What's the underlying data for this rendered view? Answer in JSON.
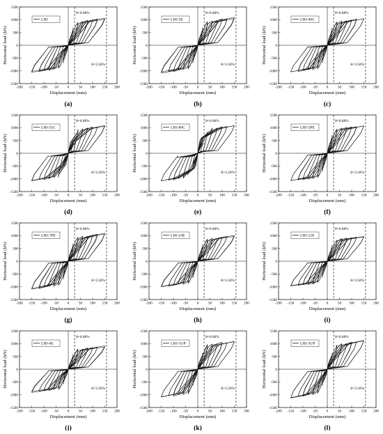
{
  "x_axis": {
    "label": "Displacement (mm)",
    "min": -200,
    "max": 200,
    "ticks": [
      "-200",
      "-150",
      "-100",
      "-50",
      "0",
      "50",
      "100",
      "150",
      "200"
    ]
  },
  "y_axis": {
    "label": "Horizontal load (kN)",
    "min": -1500,
    "max": 1500,
    "ticks": [
      "-1500",
      "-1000",
      "-500",
      "0",
      "500",
      "1000",
      "1500"
    ]
  },
  "annotations": {
    "drift_yield": "θ=0.68%",
    "drift_ultimate": "θ=3.50%"
  },
  "chart_data": [
    {
      "type": "line",
      "panel": "(a)",
      "legend": "LHJ",
      "peak_load": 1050,
      "yield_disp": 26,
      "max_disp": 150,
      "loop_disps": [
        20,
        40,
        60,
        80,
        100,
        120,
        150
      ],
      "pinch": 0.28,
      "xlim": [
        -200,
        200
      ],
      "ylim": [
        -1500,
        1500
      ],
      "vlines": [
        26,
        157
      ],
      "grid": false
    },
    {
      "type": "line",
      "panel": "(b)",
      "legend": "LHJ-5E",
      "peak_load": 1060,
      "yield_disp": 26,
      "max_disp": 150,
      "loop_disps": [
        20,
        40,
        60,
        80,
        100,
        120,
        150
      ],
      "pinch": 0.3,
      "xlim": [
        -200,
        200
      ],
      "ylim": [
        -1500,
        1500
      ],
      "vlines": [
        26,
        157
      ],
      "grid": false
    },
    {
      "type": "line",
      "panel": "(c)",
      "legend": "LHJ-40C",
      "peak_load": 1050,
      "yield_disp": 26,
      "max_disp": 150,
      "loop_disps": [
        20,
        40,
        60,
        80,
        100,
        120,
        150
      ],
      "pinch": 0.28,
      "xlim": [
        -200,
        200
      ],
      "ylim": [
        -1500,
        1500
      ],
      "vlines": [
        26,
        157
      ],
      "grid": false
    },
    {
      "type": "line",
      "panel": "(d)",
      "legend": "LHJ-55C",
      "peak_load": 1090,
      "yield_disp": 40,
      "max_disp": 150,
      "loop_disps": [
        20,
        40,
        60,
        80,
        100,
        120,
        150
      ],
      "pinch": 0.45,
      "xlim": [
        -200,
        200
      ],
      "ylim": [
        -1500,
        1500
      ],
      "vlines": [
        26,
        157
      ],
      "grid": false
    },
    {
      "type": "line",
      "panel": "(e)",
      "legend": "LHJ-60C",
      "peak_load": 1100,
      "yield_disp": 45,
      "max_disp": 150,
      "loop_disps": [
        20,
        40,
        60,
        80,
        100,
        120,
        150
      ],
      "pinch": 0.6,
      "xlim": [
        -200,
        200
      ],
      "ylim": [
        -1500,
        1500
      ],
      "vlines": [
        26,
        157
      ],
      "grid": false
    },
    {
      "type": "line",
      "panel": "(f)",
      "legend": "LHJ-5PE",
      "peak_load": 1080,
      "yield_disp": 26,
      "max_disp": 150,
      "loop_disps": [
        20,
        40,
        60,
        80,
        100,
        120,
        150
      ],
      "pinch": 0.3,
      "xlim": [
        -200,
        200
      ],
      "ylim": [
        -1500,
        1500
      ],
      "vlines": [
        26,
        157
      ],
      "grid": false
    },
    {
      "type": "line",
      "panel": "(g)",
      "legend": "LHJ-7PE",
      "peak_load": 1070,
      "yield_disp": 26,
      "max_disp": 150,
      "loop_disps": [
        20,
        40,
        60,
        80,
        100,
        120,
        150
      ],
      "pinch": 0.3,
      "xlim": [
        -200,
        200
      ],
      "ylim": [
        -1500,
        1500
      ],
      "vlines": [
        26,
        157
      ],
      "grid": false
    },
    {
      "type": "line",
      "panel": "(h)",
      "legend": "LHJ-24E",
      "peak_load": 990,
      "yield_disp": 26,
      "max_disp": 150,
      "loop_disps": [
        20,
        40,
        60,
        80,
        100,
        120,
        150
      ],
      "pinch": 0.28,
      "xlim": [
        -200,
        200
      ],
      "ylim": [
        -1500,
        1500
      ],
      "vlines": [
        26,
        157
      ],
      "grid": false
    },
    {
      "type": "line",
      "panel": "(i)",
      "legend": "LHJ-12E",
      "peak_load": 980,
      "yield_disp": 26,
      "max_disp": 150,
      "loop_disps": [
        20,
        40,
        60,
        80,
        100,
        120,
        150
      ],
      "pinch": 0.28,
      "xlim": [
        -200,
        200
      ],
      "ylim": [
        -1500,
        1500
      ],
      "vlines": [
        26,
        157
      ],
      "grid": false
    },
    {
      "type": "line",
      "panel": "(j)",
      "legend": "LHJ-6E",
      "peak_load": 900,
      "yield_disp": 26,
      "max_disp": 150,
      "loop_disps": [
        20,
        40,
        60,
        80,
        100,
        120,
        150
      ],
      "pinch": 0.28,
      "xlim": [
        -200,
        200
      ],
      "ylim": [
        -1500,
        1500
      ],
      "vlines": [
        26,
        157
      ],
      "grid": false
    },
    {
      "type": "line",
      "panel": "(k)",
      "legend": "LHJ-1UP",
      "peak_load": 1100,
      "yield_disp": 30,
      "max_disp": 150,
      "loop_disps": [
        20,
        40,
        60,
        80,
        100,
        120,
        150
      ],
      "pinch": 0.35,
      "xlim": [
        -200,
        200
      ],
      "ylim": [
        -1500,
        1500
      ],
      "vlines": [
        26,
        157
      ],
      "grid": false
    },
    {
      "type": "line",
      "panel": "(l)",
      "legend": "LHJ-3UP",
      "peak_load": 1100,
      "yield_disp": 30,
      "max_disp": 150,
      "loop_disps": [
        20,
        40,
        60,
        80,
        100,
        120,
        150
      ],
      "pinch": 0.35,
      "xlim": [
        -200,
        200
      ],
      "ylim": [
        -1500,
        1500
      ],
      "vlines": [
        26,
        157
      ],
      "grid": false
    }
  ]
}
